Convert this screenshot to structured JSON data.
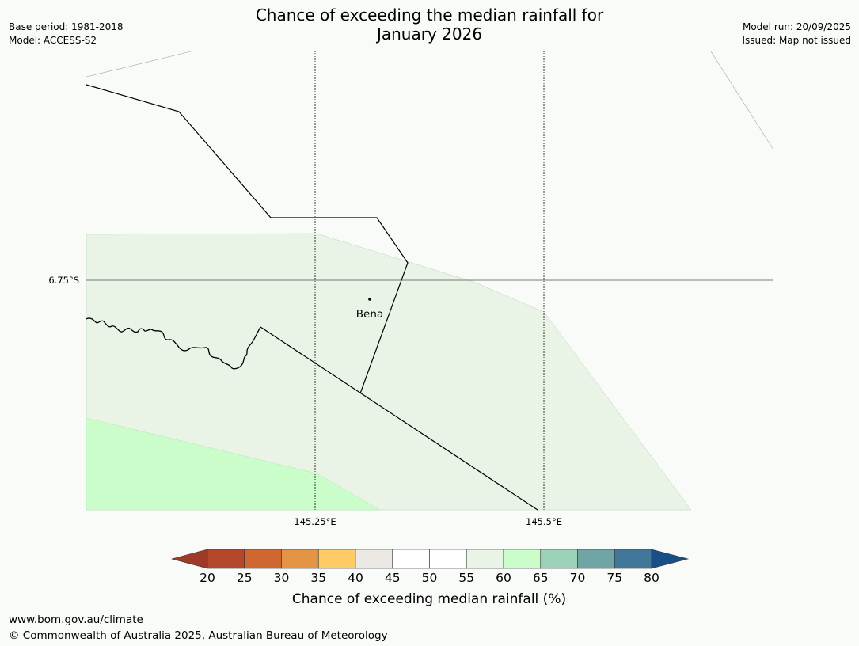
{
  "title": {
    "line1": "Chance of exceeding the median rainfall for",
    "line2": "January 2026"
  },
  "meta_left": {
    "base_period": "Base period: 1981-2018",
    "model": "Model: ACCESS-S2"
  },
  "meta_right": {
    "model_run": "Model run: 20/09/2025",
    "issued": "Issued: Map not issued"
  },
  "map": {
    "lat_label": "6.75°S",
    "lon_labels": [
      "145.25°E",
      "145.5°E"
    ],
    "place_name": "Bena"
  },
  "colorbar": {
    "label": "Chance of exceeding median rainfall (%)",
    "ticks": [
      "20",
      "25",
      "30",
      "35",
      "40",
      "45",
      "50",
      "55",
      "60",
      "65",
      "70",
      "75",
      "80"
    ],
    "colors": [
      "#9e3a26",
      "#b5482a",
      "#d06731",
      "#e59344",
      "#fecb66",
      "#ece9e5",
      "#ffffff",
      "#ffffff",
      "#e9f4e7",
      "#cbfdca",
      "#9dd2ba",
      "#70a5a6",
      "#41789a",
      "#194e86"
    ]
  },
  "footer": {
    "url": "www.bom.gov.au/climate",
    "copyright": "© Commonwealth of Australia 2025, Australian Bureau of Meteorology"
  }
}
